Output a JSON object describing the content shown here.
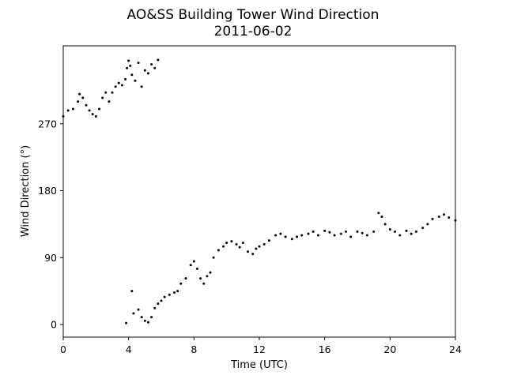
{
  "chart_data": {
    "type": "scatter",
    "title": "AO&SS Building Tower Wind Direction",
    "subtitle": "2011-06-02",
    "xlabel": "Time (UTC)",
    "ylabel": "Wind Direction (°)",
    "xlim": [
      0,
      24
    ],
    "ylim": [
      -17,
      375
    ],
    "xticks": [
      0,
      4,
      8,
      12,
      16,
      20,
      24
    ],
    "yticks": [
      0,
      90,
      180,
      270
    ],
    "grid": false,
    "legend": "none",
    "marker_color": "#000000",
    "series": [
      {
        "x": [
          0.0,
          0.3,
          0.6,
          0.9,
          1.0,
          1.2,
          1.4,
          1.6,
          1.8,
          2.0,
          2.2,
          2.4,
          2.6,
          2.8,
          3.0,
          3.2,
          3.4,
          3.6,
          3.8,
          3.9,
          4.0,
          4.1,
          4.2,
          4.4,
          4.6,
          4.8,
          5.0,
          5.2,
          5.4,
          5.6,
          5.8,
          3.85,
          4.2,
          4.3,
          4.6,
          4.8,
          5.0,
          5.2,
          5.4,
          5.6,
          5.8,
          6.0,
          6.2,
          6.5,
          6.8,
          7.0,
          7.2,
          7.5,
          7.8,
          8.0,
          8.2,
          8.4,
          8.6,
          8.8,
          9.0,
          9.2,
          9.5,
          9.8,
          10.0,
          10.3,
          10.6,
          10.8,
          11.0,
          11.3,
          11.6,
          11.8,
          12.0,
          12.3,
          12.6,
          13.0,
          13.3,
          13.6,
          14.0,
          14.3,
          14.6,
          15.0,
          15.3,
          15.6,
          16.0,
          16.3,
          16.6,
          17.0,
          17.3,
          17.6,
          18.0,
          18.3,
          18.6,
          19.0,
          19.3,
          19.5,
          19.7,
          20.0,
          20.3,
          20.6,
          21.0,
          21.3,
          21.6,
          22.0,
          22.3,
          22.6,
          23.0,
          23.3,
          23.6,
          24.0
        ],
        "y": [
          280,
          288,
          290,
          300,
          310,
          305,
          295,
          288,
          283,
          280,
          290,
          305,
          312,
          300,
          312,
          320,
          325,
          322,
          330,
          345,
          355,
          348,
          336,
          328,
          352,
          320,
          342,
          338,
          350,
          345,
          356,
          2,
          45,
          15,
          20,
          10,
          5,
          3,
          10,
          22,
          28,
          32,
          37,
          40,
          43,
          45,
          55,
          62,
          80,
          85,
          75,
          62,
          55,
          65,
          70,
          90,
          100,
          105,
          110,
          112,
          108,
          104,
          110,
          98,
          95,
          102,
          105,
          108,
          113,
          120,
          122,
          118,
          115,
          118,
          120,
          122,
          125,
          120,
          126,
          124,
          120,
          122,
          125,
          118,
          125,
          123,
          120,
          125,
          150,
          145,
          135,
          128,
          125,
          120,
          126,
          122,
          125,
          130,
          135,
          142,
          145,
          148,
          144,
          140
        ]
      }
    ]
  }
}
